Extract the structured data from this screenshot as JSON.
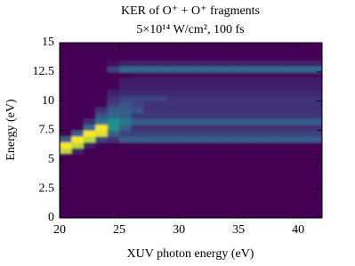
{
  "chart_data": {
    "type": "heatmap",
    "title": "KER of O⁺ + O⁺ fragments",
    "subtitle": "5×10¹⁴ W/cm², 100 fs",
    "x_label": "XUV photon energy (eV)",
    "y_label": "Energy (eV)",
    "xlim": [
      20,
      42
    ],
    "ylim": [
      0,
      15
    ],
    "xticks": [
      20,
      25,
      30,
      35,
      40
    ],
    "yticks": [
      0,
      2.5,
      5,
      7.5,
      10,
      12.5,
      15
    ],
    "colormap": "viridis",
    "x_bins": [
      20,
      21,
      22,
      23,
      24,
      25,
      26,
      27,
      28,
      29,
      30,
      31,
      32,
      33,
      34,
      35,
      36,
      37,
      38,
      39,
      40,
      41,
      42
    ],
    "y_bins": [
      5.5,
      6,
      6.5,
      7,
      7.5,
      8,
      8.5,
      9,
      9.5,
      10,
      10.5,
      11,
      11.5,
      12,
      12.5,
      13,
      13.5
    ],
    "z": [
      [
        0.9,
        0.1,
        0,
        0,
        0,
        0,
        0,
        0,
        0,
        0,
        0,
        0,
        0,
        0,
        0,
        0,
        0,
        0,
        0,
        0,
        0,
        0
      ],
      [
        1,
        0.9,
        0.1,
        0,
        0,
        0,
        0,
        0,
        0,
        0,
        0,
        0,
        0,
        0,
        0,
        0,
        0,
        0,
        0,
        0,
        0,
        0
      ],
      [
        0.3,
        1,
        0.9,
        0.2,
        0.15,
        0.3,
        0.3,
        0.3,
        0.3,
        0.3,
        0.3,
        0.3,
        0.3,
        0.3,
        0.3,
        0.3,
        0.3,
        0.3,
        0.3,
        0.3,
        0.3,
        0.3
      ],
      [
        0,
        0.3,
        1,
        0.95,
        0.3,
        0.2,
        0.2,
        0.2,
        0.2,
        0.2,
        0.2,
        0.2,
        0.2,
        0.2,
        0.2,
        0.2,
        0.2,
        0.2,
        0.2,
        0.2,
        0.2,
        0.2
      ],
      [
        0,
        0,
        0.35,
        1,
        0.5,
        0.3,
        0.15,
        0.15,
        0.15,
        0.15,
        0.15,
        0.15,
        0.15,
        0.15,
        0.15,
        0.15,
        0.15,
        0.15,
        0.15,
        0.15,
        0.15,
        0.15
      ],
      [
        0,
        0,
        0.15,
        0.4,
        0.5,
        0.4,
        0.3,
        0.3,
        0.3,
        0.3,
        0.3,
        0.3,
        0.3,
        0.3,
        0.3,
        0.3,
        0.3,
        0.3,
        0.3,
        0.3,
        0.3,
        0.3
      ],
      [
        0,
        0,
        0,
        0.25,
        0.35,
        0.3,
        0.18,
        0.18,
        0.18,
        0.18,
        0.18,
        0.18,
        0.18,
        0.18,
        0.18,
        0.18,
        0.18,
        0.18,
        0.18,
        0.18,
        0.18,
        0.18
      ],
      [
        0,
        0,
        0,
        0.15,
        0.3,
        0.3,
        0.25,
        0.15,
        0.15,
        0.15,
        0.15,
        0.15,
        0.15,
        0.15,
        0.15,
        0.15,
        0.15,
        0.15,
        0.15,
        0.15,
        0.15,
        0.15
      ],
      [
        0,
        0,
        0,
        0,
        0.2,
        0.25,
        0.2,
        0.15,
        0.15,
        0.15,
        0.15,
        0.15,
        0.15,
        0.15,
        0.15,
        0.15,
        0.15,
        0.15,
        0.15,
        0.15,
        0.15,
        0.15
      ],
      [
        0,
        0,
        0,
        0,
        0.15,
        0.2,
        0.2,
        0.2,
        0.2,
        0.15,
        0.15,
        0.15,
        0.15,
        0.15,
        0.15,
        0.15,
        0.15,
        0.15,
        0.15,
        0.15,
        0.15,
        0.15
      ],
      [
        0,
        0,
        0,
        0,
        0.1,
        0.12,
        0.12,
        0.12,
        0.12,
        0.12,
        0.12,
        0.12,
        0.12,
        0.12,
        0.12,
        0.12,
        0.12,
        0.12,
        0.12,
        0.12,
        0.12,
        0.12
      ],
      [
        0,
        0,
        0,
        0,
        0,
        0.1,
        0.1,
        0.1,
        0.1,
        0.1,
        0.1,
        0.1,
        0.1,
        0.1,
        0.1,
        0.1,
        0.1,
        0.1,
        0.1,
        0.1,
        0.1,
        0.1
      ],
      [
        0,
        0,
        0,
        0,
        0,
        0.08,
        0.08,
        0.08,
        0.08,
        0.08,
        0.08,
        0.08,
        0.08,
        0.08,
        0.08,
        0.08,
        0.08,
        0.08,
        0.08,
        0.08,
        0.08,
        0.08
      ],
      [
        0,
        0,
        0,
        0,
        0,
        0,
        0.05,
        0.05,
        0.05,
        0.05,
        0.05,
        0.05,
        0.05,
        0.05,
        0.05,
        0.05,
        0.05,
        0.05,
        0.05,
        0.05,
        0.05,
        0.05
      ],
      [
        0,
        0,
        0,
        0,
        0.2,
        0.35,
        0.35,
        0.35,
        0.35,
        0.35,
        0.35,
        0.35,
        0.35,
        0.35,
        0.35,
        0.35,
        0.35,
        0.35,
        0.35,
        0.35,
        0.35,
        0.35
      ],
      [
        0,
        0,
        0,
        0,
        0.05,
        0.1,
        0.1,
        0.1,
        0.1,
        0.1,
        0.1,
        0.1,
        0.1,
        0.1,
        0.1,
        0.1,
        0.1,
        0.1,
        0.1,
        0.1,
        0.1,
        0.1
      ]
    ]
  }
}
